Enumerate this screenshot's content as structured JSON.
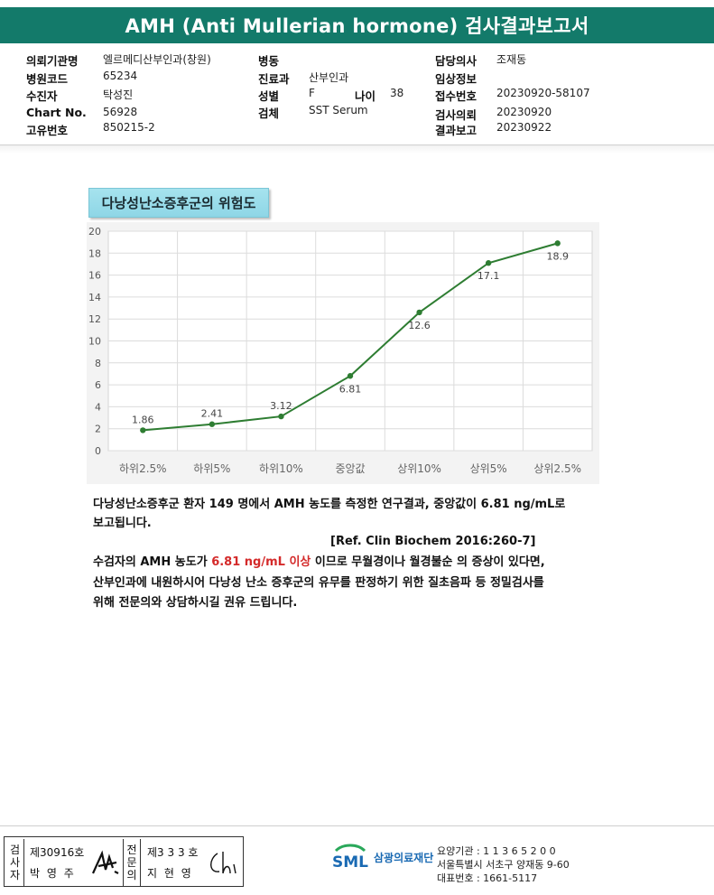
{
  "header": {
    "title": "AMH (Anti Mullerian hormone) 검사결과보고서"
  },
  "info": {
    "institution_label": "의뢰기관명",
    "institution": "엘르메디산부인과(창원)",
    "hospital_code_label": "병원코드",
    "hospital_code": "65234",
    "patient_label": "수진자",
    "patient": "탁성진",
    "chart_no_label": "Chart No.",
    "chart_no": "56928",
    "unique_no_label": "고유번호",
    "unique_no": "850215-2",
    "ward_label": "병동",
    "ward": "",
    "department_label": "진료과",
    "department": "산부인과",
    "sex_label": "성별",
    "sex": "F",
    "age_label": "나이",
    "age": "38",
    "specimen_label": "검체",
    "specimen": "SST Serum",
    "doctor_label": "담당의사",
    "doctor": "조재동",
    "clinical_label": "임상정보",
    "clinical": "",
    "receipt_label": "접수번호",
    "receipt": "20230920-58107",
    "request_label": "검사의뢰",
    "request_date": "20230920",
    "report_label": "결과보고",
    "report_date": "20230922"
  },
  "chart_title": "다낭성난소증후군의 위험도",
  "chart_data": {
    "type": "line",
    "categories": [
      "하위2.5%",
      "하위5%",
      "하위10%",
      "중앙값",
      "상위10%",
      "상위5%",
      "상위2.5%"
    ],
    "series": [
      {
        "values": [
          1.86,
          2.41,
          3.12,
          6.81,
          12.6,
          17.1,
          18.9
        ]
      }
    ],
    "data_labels": [
      "1.86",
      "2.41",
      "3.12",
      "6.81",
      "12.6",
      "17.1",
      "18.9"
    ],
    "yticks": [
      0,
      2,
      4,
      6,
      8,
      10,
      12,
      14,
      16,
      18,
      20
    ],
    "ylim": [
      0,
      20
    ],
    "grid": true,
    "color": "#2e7d32"
  },
  "description": {
    "line1": "다낭성난소증후군 환자 149 명에서 AMH 농도를 측정한 연구결과, 중앙값이 6.81 ng/mL로",
    "line2": "보고됩니다.",
    "reference": "[Ref. Clin Biochem 2016:260-7]",
    "para2_prefix": "수검자의 AMH 농도가 ",
    "para2_highlight": "6.81 ng/mL 이상",
    "para2_suffix": " 이므로 무월경이나 월경불순 의 증상이 있다면,",
    "para2_line2": "산부인과에 내원하시어 다낭성 난소 증후군의 유무를 판정하기 위한 질초음파 등 정밀검사를",
    "para2_line3": "위해 전문의와 상담하시길 권유 드립니다."
  },
  "footer": {
    "examiner_label_1": "검",
    "examiner_label_2": "사",
    "examiner_label_3": "자",
    "examiner_license": "제30916호",
    "examiner_name": "박 영 주",
    "specialist_label_1": "전",
    "specialist_label_2": "문",
    "specialist_label_3": "의",
    "specialist_license": "제3 3 3 호",
    "specialist_name": "지 현 영",
    "logo_mark": "SML",
    "logo_name": "삼광의료재단",
    "care_code": "요양기관 : 1 1 3 6 5 2 0 0",
    "address": "서울특별시 서초구 양재동 9-60",
    "phone": "대표번호 : 1661-5117"
  }
}
